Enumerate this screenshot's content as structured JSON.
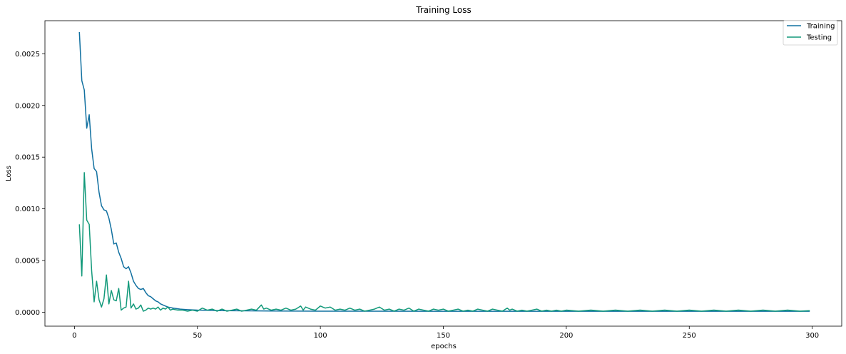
{
  "chart_data": {
    "type": "line",
    "title": "Training Loss",
    "xlabel": "epochs",
    "ylabel": "Loss",
    "xlim": [
      -12,
      312
    ],
    "ylim": [
      -0.000135,
      0.00282
    ],
    "xticks": [
      0,
      50,
      100,
      150,
      200,
      250,
      300
    ],
    "yticks": [
      0.0,
      0.0005,
      0.001,
      0.0015,
      0.002,
      0.0025
    ],
    "ytick_labels": [
      "0.0000",
      "0.0005",
      "0.0010",
      "0.0015",
      "0.0020",
      "0.0025"
    ],
    "grid": false,
    "legend_position": "top-right",
    "series": [
      {
        "name": "Training",
        "color": "#1170a0",
        "points": [
          [
            2,
            0.00271
          ],
          [
            3,
            0.00224
          ],
          [
            4,
            0.00215
          ],
          [
            5,
            0.00178
          ],
          [
            6,
            0.00191
          ],
          [
            7,
            0.00158
          ],
          [
            8,
            0.00139
          ],
          [
            9,
            0.00136
          ],
          [
            10,
            0.00116
          ],
          [
            11,
            0.00103
          ],
          [
            12,
            0.00099
          ],
          [
            13,
            0.00098
          ],
          [
            14,
            0.00091
          ],
          [
            15,
            0.0008
          ],
          [
            16,
            0.00066
          ],
          [
            17,
            0.00067
          ],
          [
            18,
            0.00058
          ],
          [
            19,
            0.00052
          ],
          [
            20,
            0.00044
          ],
          [
            21,
            0.00042
          ],
          [
            22,
            0.00044
          ],
          [
            23,
            0.00038
          ],
          [
            24,
            0.0003
          ],
          [
            25,
            0.00026
          ],
          [
            26,
            0.00023
          ],
          [
            27,
            0.00022
          ],
          [
            28,
            0.00023
          ],
          [
            29,
            0.00019
          ],
          [
            30,
            0.00016
          ],
          [
            31,
            0.00015
          ],
          [
            32,
            0.00013
          ],
          [
            33,
            0.00011
          ],
          [
            34,
            0.0001
          ],
          [
            35,
            8e-05
          ],
          [
            36,
            7e-05
          ],
          [
            37,
            6e-05
          ],
          [
            38,
            5e-05
          ],
          [
            40,
            4e-05
          ],
          [
            43,
            3e-05
          ],
          [
            46,
            2.5e-05
          ],
          [
            50,
            2e-05
          ],
          [
            60,
            1.5e-05
          ],
          [
            80,
            1.2e-05
          ],
          [
            100,
            1e-05
          ],
          [
            150,
            9e-06
          ],
          [
            200,
            9e-06
          ],
          [
            250,
            9e-06
          ],
          [
            299,
            9e-06
          ]
        ]
      },
      {
        "name": "Testing",
        "color": "#12997a",
        "points": [
          [
            2,
            0.00085
          ],
          [
            3,
            0.00035
          ],
          [
            4,
            0.00135
          ],
          [
            5,
            0.00089
          ],
          [
            6,
            0.00085
          ],
          [
            7,
            0.0004
          ],
          [
            8,
            0.0001
          ],
          [
            9,
            0.0003
          ],
          [
            10,
            0.00012
          ],
          [
            11,
            5e-05
          ],
          [
            12,
            0.00013
          ],
          [
            13,
            0.00036
          ],
          [
            14,
            8e-05
          ],
          [
            15,
            0.00021
          ],
          [
            16,
            0.00012
          ],
          [
            17,
            0.00011
          ],
          [
            18,
            0.00023
          ],
          [
            19,
            2e-05
          ],
          [
            20,
            4e-05
          ],
          [
            21,
            5e-05
          ],
          [
            22,
            0.0003
          ],
          [
            23,
            4e-05
          ],
          [
            24,
            8e-05
          ],
          [
            25,
            3e-05
          ],
          [
            26,
            4e-05
          ],
          [
            27,
            7e-05
          ],
          [
            28,
            1e-05
          ],
          [
            29,
            2e-05
          ],
          [
            30,
            4e-05
          ],
          [
            31,
            3e-05
          ],
          [
            32,
            4e-05
          ],
          [
            33,
            3e-05
          ],
          [
            34,
            5e-05
          ],
          [
            35,
            2e-05
          ],
          [
            36,
            4e-05
          ],
          [
            37,
            3e-05
          ],
          [
            38,
            5e-05
          ],
          [
            39,
            2e-05
          ],
          [
            40,
            3e-05
          ],
          [
            42,
            2e-05
          ],
          [
            44,
            2e-05
          ],
          [
            46,
            1e-05
          ],
          [
            48,
            2e-05
          ],
          [
            50,
            1e-05
          ],
          [
            52,
            4e-05
          ],
          [
            54,
            2e-05
          ],
          [
            56,
            3e-05
          ],
          [
            58,
            1e-05
          ],
          [
            60,
            3e-05
          ],
          [
            62,
            1e-05
          ],
          [
            64,
            2e-05
          ],
          [
            66,
            3e-05
          ],
          [
            68,
            1e-05
          ],
          [
            70,
            2e-05
          ],
          [
            72,
            3e-05
          ],
          [
            74,
            2e-05
          ],
          [
            76,
            7e-05
          ],
          [
            77,
            3e-05
          ],
          [
            78,
            4e-05
          ],
          [
            80,
            2e-05
          ],
          [
            82,
            3e-05
          ],
          [
            84,
            2e-05
          ],
          [
            86,
            4e-05
          ],
          [
            88,
            2e-05
          ],
          [
            90,
            3e-05
          ],
          [
            92,
            6e-05
          ],
          [
            93,
            2e-05
          ],
          [
            94,
            5e-05
          ],
          [
            96,
            3e-05
          ],
          [
            98,
            2e-05
          ],
          [
            100,
            6e-05
          ],
          [
            102,
            4e-05
          ],
          [
            104,
            5e-05
          ],
          [
            106,
            2e-05
          ],
          [
            108,
            3e-05
          ],
          [
            110,
            2e-05
          ],
          [
            112,
            4e-05
          ],
          [
            114,
            2e-05
          ],
          [
            116,
            3e-05
          ],
          [
            118,
            1e-05
          ],
          [
            120,
            2e-05
          ],
          [
            122,
            3e-05
          ],
          [
            124,
            5e-05
          ],
          [
            126,
            2e-05
          ],
          [
            128,
            3e-05
          ],
          [
            130,
            1e-05
          ],
          [
            132,
            3e-05
          ],
          [
            134,
            2e-05
          ],
          [
            136,
            4e-05
          ],
          [
            138,
            1e-05
          ],
          [
            140,
            3e-05
          ],
          [
            142,
            2e-05
          ],
          [
            144,
            1e-05
          ],
          [
            146,
            3e-05
          ],
          [
            148,
            2e-05
          ],
          [
            150,
            3e-05
          ],
          [
            152,
            1e-05
          ],
          [
            154,
            2e-05
          ],
          [
            156,
            3e-05
          ],
          [
            158,
            1e-05
          ],
          [
            160,
            2e-05
          ],
          [
            162,
            1e-05
          ],
          [
            164,
            3e-05
          ],
          [
            166,
            2e-05
          ],
          [
            168,
            1e-05
          ],
          [
            170,
            3e-05
          ],
          [
            172,
            2e-05
          ],
          [
            174,
            1e-05
          ],
          [
            176,
            4e-05
          ],
          [
            177,
            2e-05
          ],
          [
            178,
            3e-05
          ],
          [
            180,
            1e-05
          ],
          [
            182,
            2e-05
          ],
          [
            184,
            1e-05
          ],
          [
            186,
            2e-05
          ],
          [
            188,
            3e-05
          ],
          [
            190,
            1e-05
          ],
          [
            192,
            2e-05
          ],
          [
            194,
            1e-05
          ],
          [
            196,
            2e-05
          ],
          [
            198,
            1e-05
          ],
          [
            200,
            2e-05
          ],
          [
            205,
            1e-05
          ],
          [
            210,
            2e-05
          ],
          [
            215,
            1e-05
          ],
          [
            220,
            2e-05
          ],
          [
            225,
            1e-05
          ],
          [
            230,
            2e-05
          ],
          [
            235,
            1e-05
          ],
          [
            240,
            2e-05
          ],
          [
            245,
            1e-05
          ],
          [
            250,
            2e-05
          ],
          [
            255,
            1e-05
          ],
          [
            260,
            2e-05
          ],
          [
            265,
            1e-05
          ],
          [
            270,
            2e-05
          ],
          [
            275,
            1e-05
          ],
          [
            280,
            2e-05
          ],
          [
            285,
            1e-05
          ],
          [
            290,
            2e-05
          ],
          [
            295,
            1e-05
          ],
          [
            299,
            1.5e-05
          ]
        ]
      }
    ]
  }
}
